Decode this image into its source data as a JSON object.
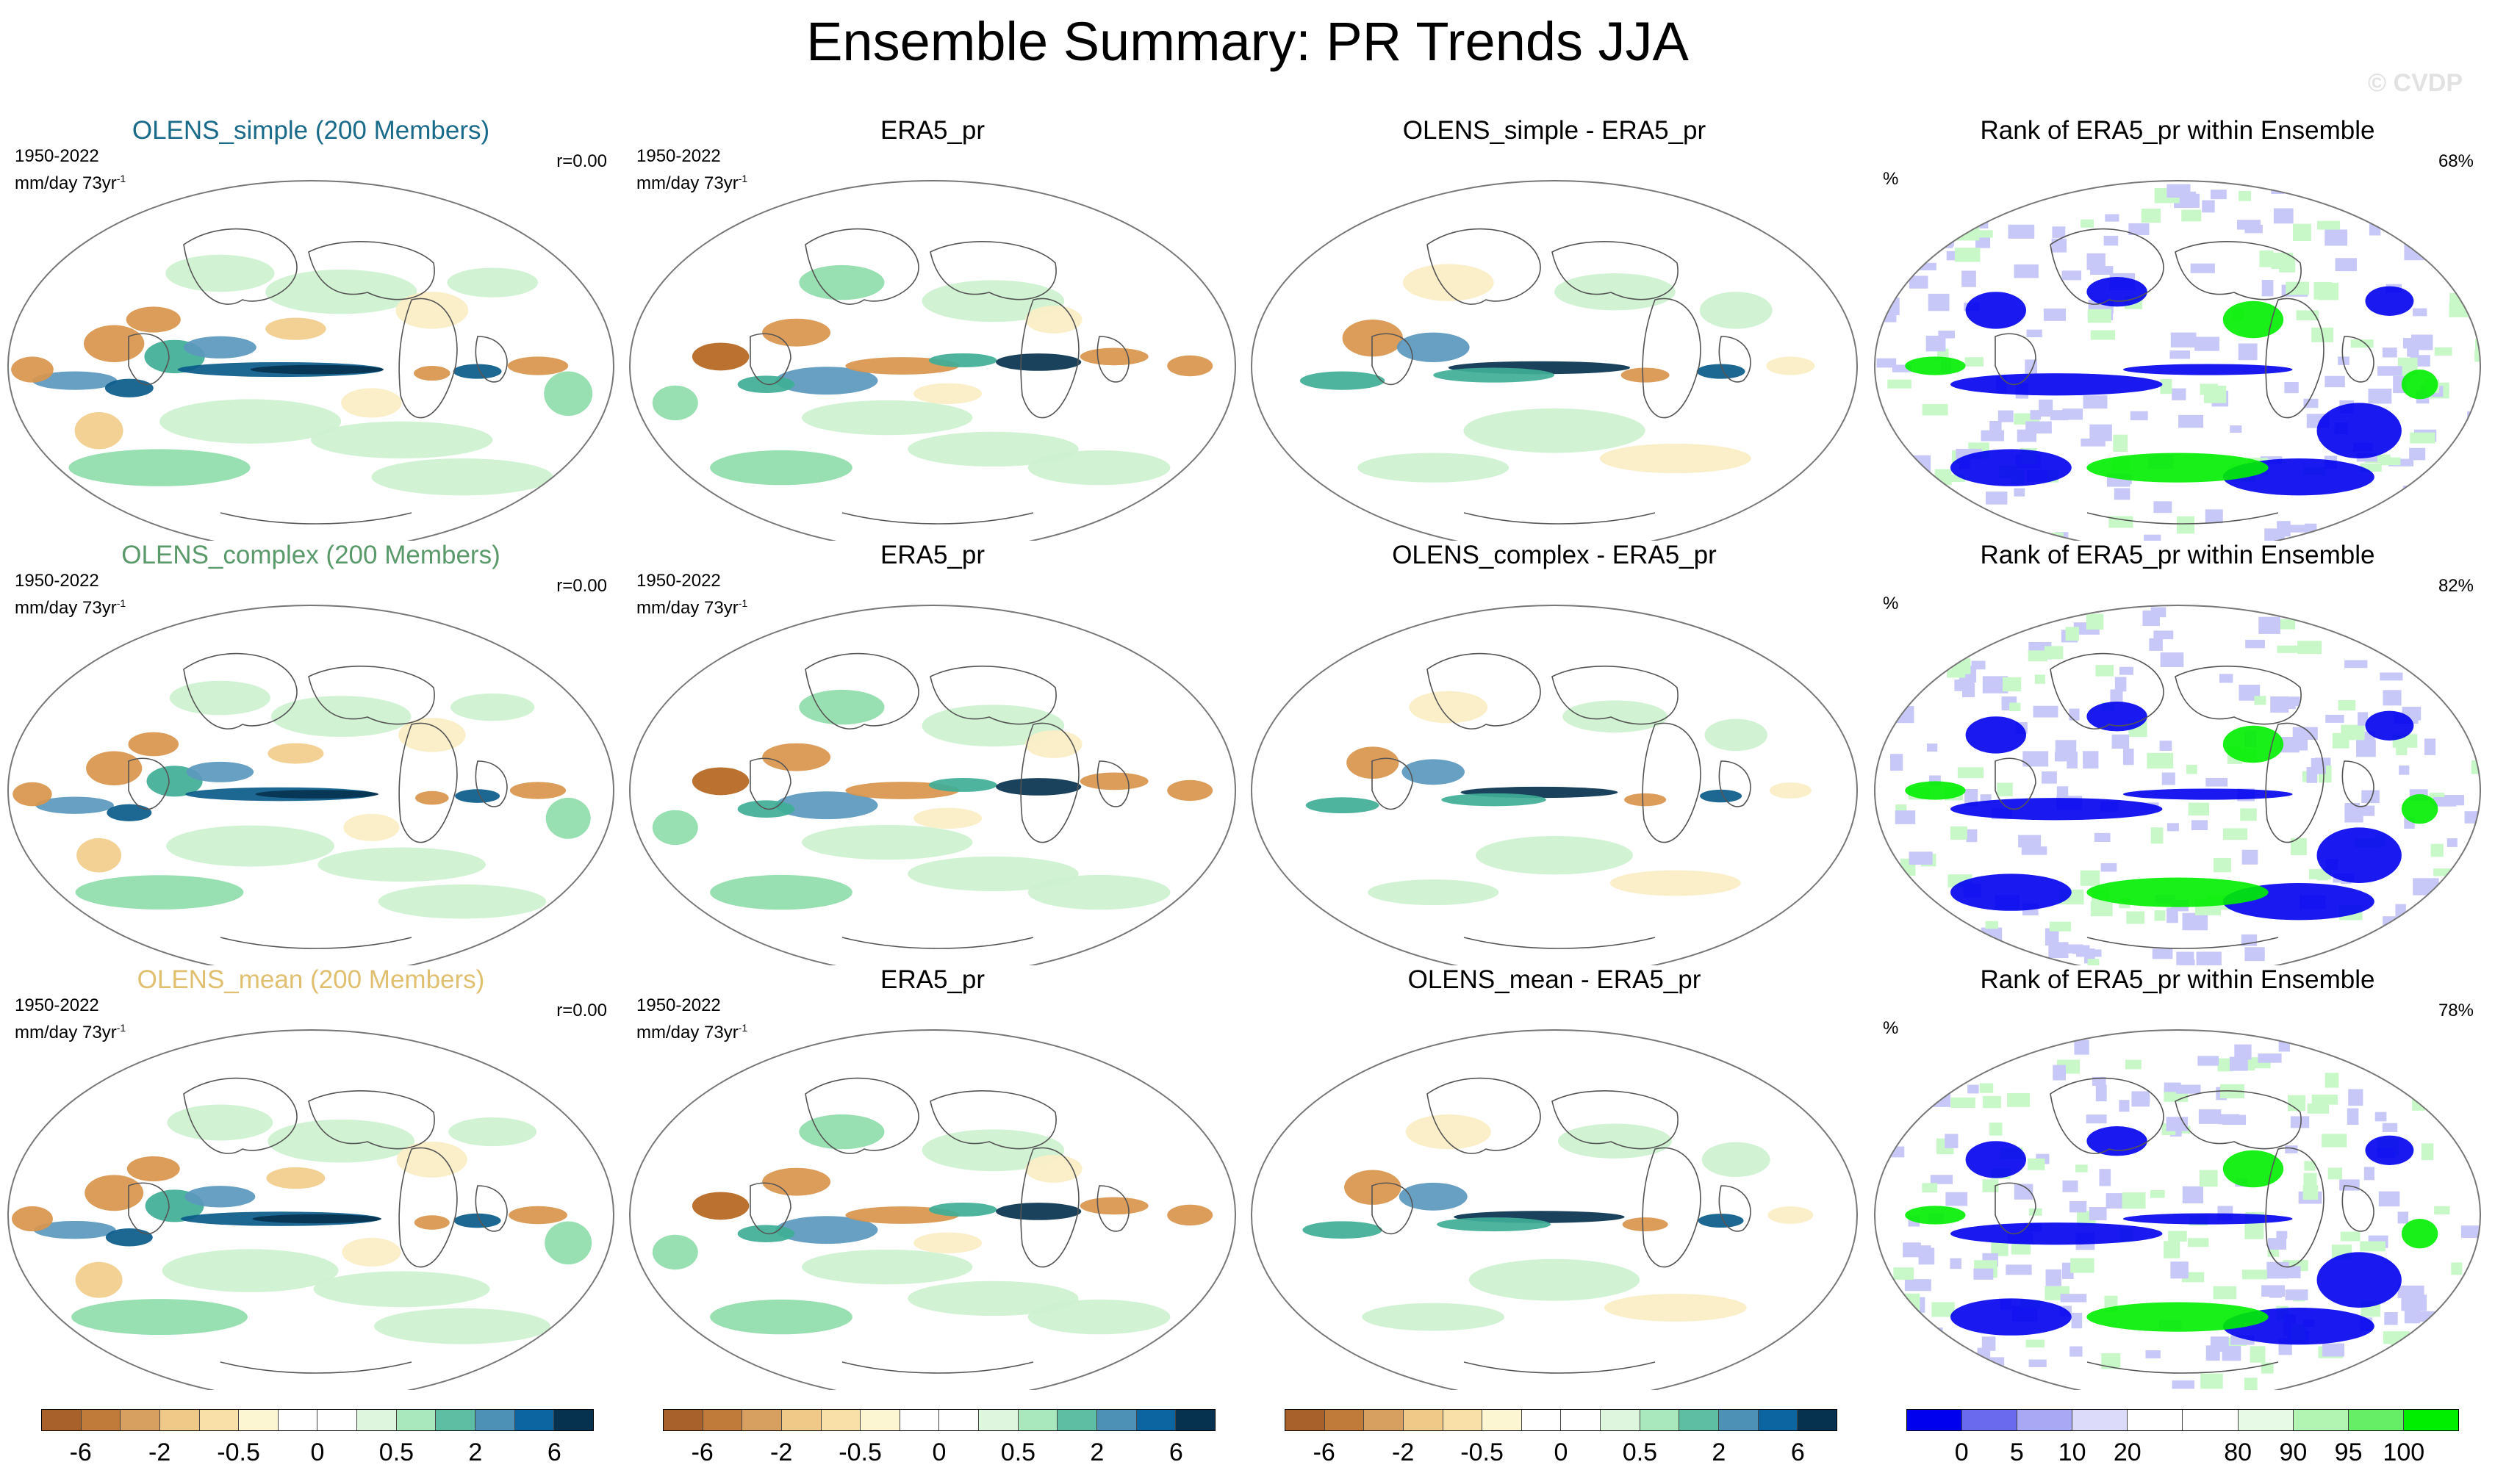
{
  "title": "Ensemble Summary: PR Trends JJA",
  "watermark": "© CVDP",
  "colors": {
    "brown_dark": "#b5651d",
    "brown_mid": "#d9954d",
    "tan": "#f2cc8a",
    "cream": "#fbeec5",
    "green_light": "#cdf2d0",
    "green_mid": "#8fdcaa",
    "teal": "#3fae96",
    "steel": "#5b98be",
    "blue_dark": "#0a5a8a",
    "navy": "#07324f",
    "rank_blue": "#0000ee",
    "rank_green": "#00ee00",
    "title_simple": "#1a6a8a",
    "title_complex": "#5a9a6a",
    "title_mean": "#e0c070"
  },
  "rows": [
    {
      "name": "simple",
      "title_color": "#1a6a8a",
      "panels": [
        {
          "title": "OLENS_simple (200 Members)",
          "period": "1950-2022",
          "units": "mm/day 73yr",
          "units_sup": "-1",
          "right": "r=0.00",
          "kind": "trend",
          "intensity": 1.0
        },
        {
          "title": "ERA5_pr",
          "period": "1950-2022",
          "units": "mm/day 73yr",
          "units_sup": "-1",
          "right": "",
          "kind": "obs",
          "intensity": 0.8
        },
        {
          "title": "OLENS_simple - ERA5_pr",
          "period": "",
          "units": "",
          "units_sup": "",
          "right": "",
          "kind": "diff",
          "intensity": 1.0
        },
        {
          "title": "Rank of ERA5_pr within Ensemble",
          "period": "",
          "units": "",
          "units_sup": "",
          "right": "68%",
          "pct": "%",
          "kind": "rank",
          "intensity": 1.0
        }
      ]
    },
    {
      "name": "complex",
      "title_color": "#5a9a6a",
      "panels": [
        {
          "title": "OLENS_complex (200 Members)",
          "period": "1950-2022",
          "units": "mm/day 73yr",
          "units_sup": "-1",
          "right": "r=0.00",
          "kind": "trend",
          "intensity": 0.75
        },
        {
          "title": "ERA5_pr",
          "period": "1950-2022",
          "units": "mm/day 73yr",
          "units_sup": "-1",
          "right": "",
          "kind": "obs",
          "intensity": 0.8
        },
        {
          "title": "OLENS_complex - ERA5_pr",
          "period": "",
          "units": "",
          "units_sup": "",
          "right": "",
          "kind": "diff",
          "intensity": 0.55
        },
        {
          "title": "Rank of ERA5_pr within Ensemble",
          "period": "",
          "units": "",
          "units_sup": "",
          "right": "82%",
          "pct": "%",
          "kind": "rank",
          "intensity": 0.5
        }
      ]
    },
    {
      "name": "mean",
      "title_color": "#e0c070",
      "panels": [
        {
          "title": "OLENS_mean (200 Members)",
          "period": "1950-2022",
          "units": "mm/day 73yr",
          "units_sup": "-1",
          "right": "r=0.00",
          "kind": "trend",
          "intensity": 0.9
        },
        {
          "title": "ERA5_pr",
          "period": "1950-2022",
          "units": "mm/day 73yr",
          "units_sup": "-1",
          "right": "",
          "kind": "obs",
          "intensity": 0.8
        },
        {
          "title": "OLENS_mean - ERA5_pr",
          "period": "",
          "units": "",
          "units_sup": "",
          "right": "",
          "kind": "diff",
          "intensity": 0.8
        },
        {
          "title": "Rank of ERA5_pr within Ensemble",
          "period": "",
          "units": "",
          "units_sup": "",
          "right": "78%",
          "pct": "%",
          "kind": "rank",
          "intensity": 0.7
        }
      ]
    }
  ],
  "colorbars": {
    "trend": {
      "colors": [
        "#a8612a",
        "#c07a3a",
        "#d8a060",
        "#f0c888",
        "#f8e0a8",
        "#fdf6d2",
        "#ffffff",
        "#ffffff",
        "#ddf6dd",
        "#a8e8bc",
        "#5ebea4",
        "#4d92b6",
        "#0c64a0",
        "#07324f"
      ],
      "labels": [
        "-6",
        "-2",
        "-0.5",
        "0",
        "0.5",
        "2",
        "6"
      ],
      "label_slots": [
        1,
        3,
        5,
        7,
        9,
        11,
        13
      ]
    },
    "rank": {
      "colors": [
        "#0000ee",
        "#6a6aee",
        "#a8a8f4",
        "#dcdcfa",
        "#ffffff",
        "#ffffff",
        "#e6fae6",
        "#b2f4b2",
        "#66ee66",
        "#00ee00"
      ],
      "labels": [
        "0",
        "5",
        "10",
        "20",
        "80",
        "90",
        "95",
        "100"
      ],
      "label_slots": [
        1,
        2,
        3,
        4,
        6,
        7,
        8,
        9
      ]
    }
  }
}
